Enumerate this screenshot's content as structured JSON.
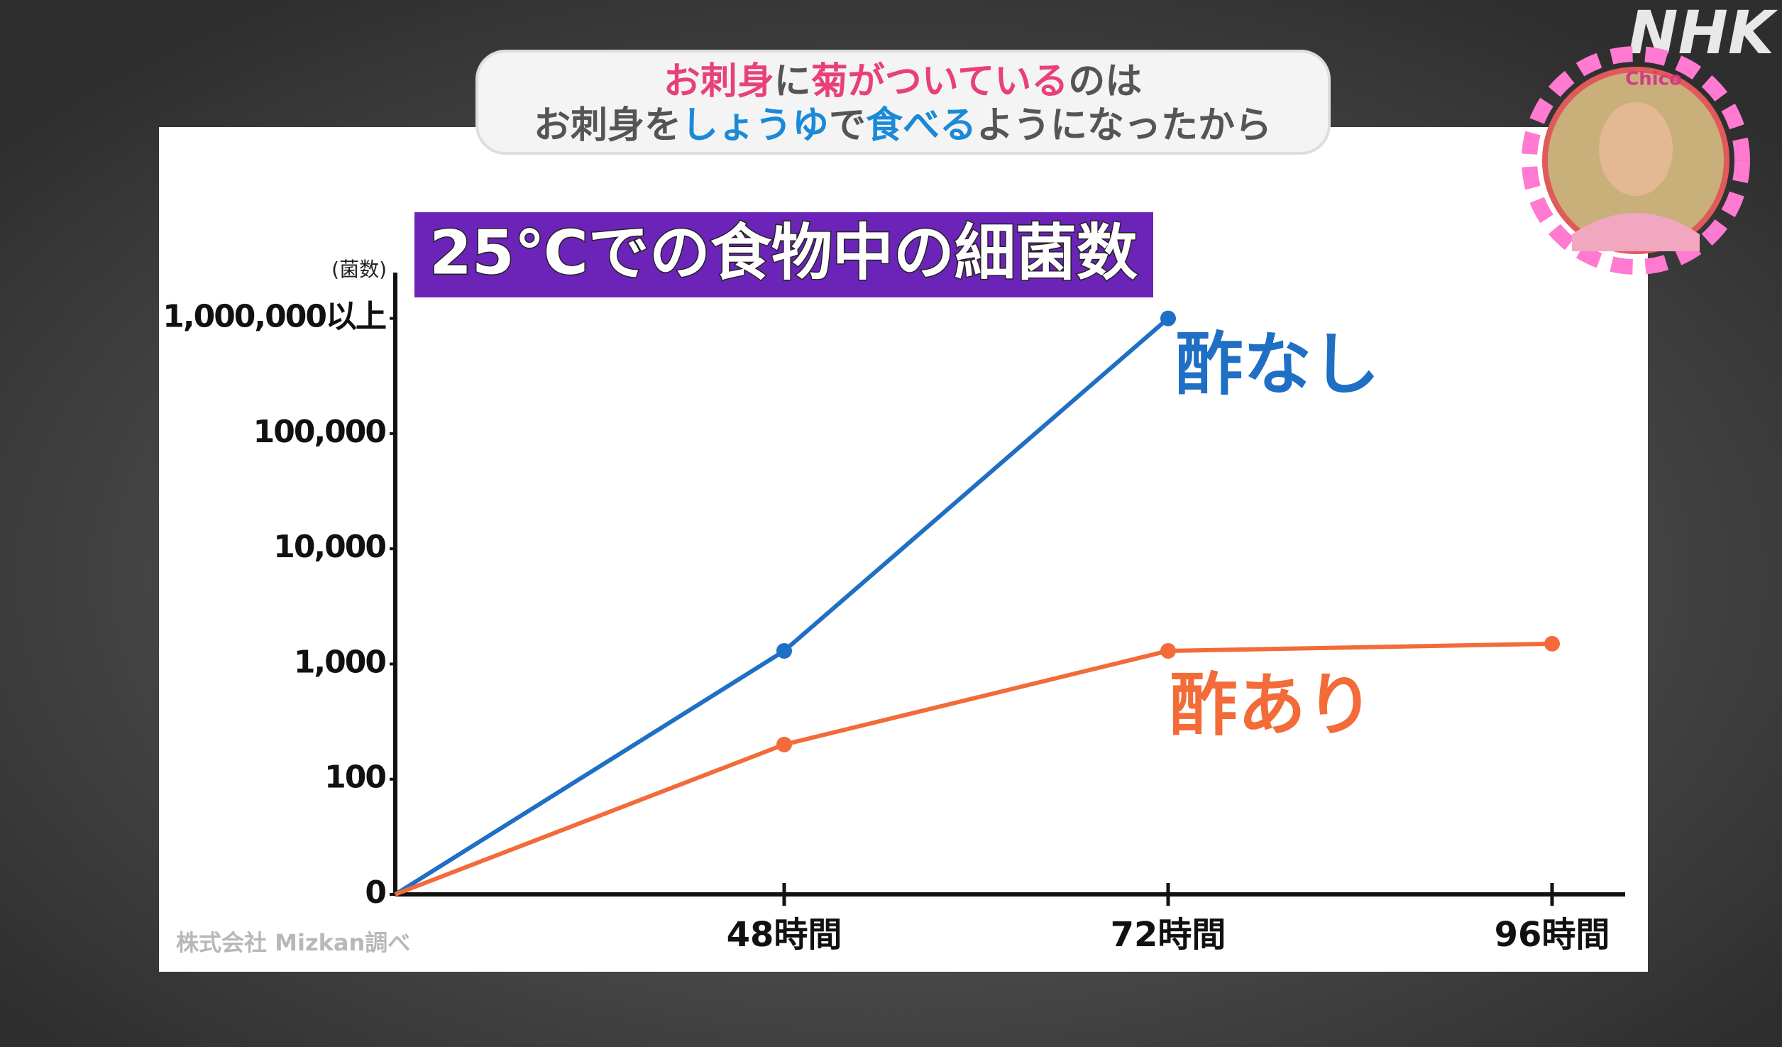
{
  "banner": {
    "line1": [
      {
        "text": "お刺身",
        "color": "#e8407a"
      },
      {
        "text": "に",
        "color": "#555555"
      },
      {
        "text": "菊",
        "color": "#e8407a"
      },
      {
        "text": "が",
        "color": "#e8407a"
      },
      {
        "text": "ついている",
        "color": "#e8407a"
      },
      {
        "text": "のは",
        "color": "#555555"
      }
    ],
    "line2": [
      {
        "text": "お刺身",
        "color": "#555555"
      },
      {
        "text": "を",
        "color": "#555555"
      },
      {
        "text": "しょうゆ",
        "color": "#1a8ad8"
      },
      {
        "text": "で",
        "color": "#555555"
      },
      {
        "text": "食べる",
        "color": "#1a8ad8"
      },
      {
        "text": "ようになったから",
        "color": "#555555"
      }
    ]
  },
  "logo": "NHK",
  "corner_label": "Chico",
  "chart_data": {
    "type": "line",
    "title": "25℃での食物中の細菌数",
    "y_label": "(菌数)",
    "source": "株式会社 Mizkan調べ",
    "categories": [
      null,
      "48時間",
      "72時間",
      "96時間"
    ],
    "yscale": "log",
    "ylim": [
      0,
      2500000
    ],
    "yticks": [
      0,
      100,
      {
        "value": 1000,
        "label": "1,000"
      },
      {
        "value": 10000,
        "label": "10,000"
      },
      {
        "value": 100000,
        "label": "100,000"
      },
      {
        "value": 1000000,
        "label": "1,000,000以上"
      }
    ],
    "series": [
      {
        "name": "酢なし",
        "color": "#1f6fc5",
        "values": [
          0,
          1300,
          1000000,
          null
        ]
      },
      {
        "name": "酢あり",
        "color": "#f26b38",
        "values": [
          0,
          200,
          1300,
          1500
        ]
      }
    ]
  }
}
